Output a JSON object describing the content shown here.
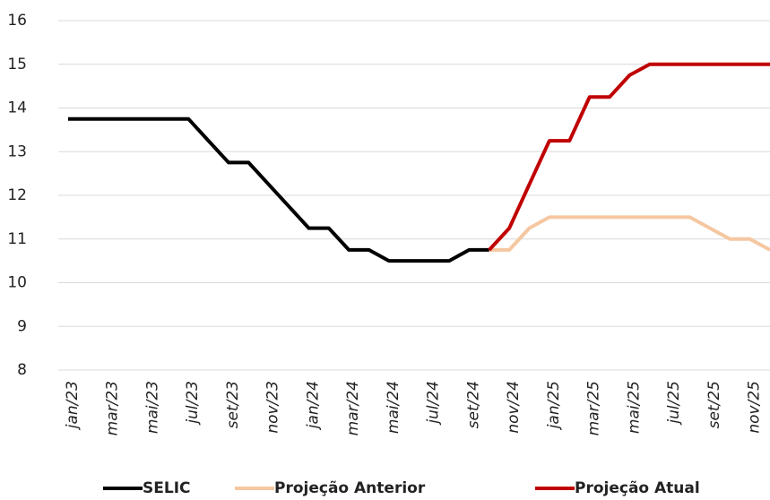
{
  "chart_data": {
    "type": "line",
    "categories": [
      "jan/23",
      null,
      "mar/23",
      null,
      "mai/23",
      null,
      "jul/23",
      null,
      "set/23",
      null,
      "nov/23",
      null,
      "jan/24",
      null,
      "mar/24",
      null,
      "mai/24",
      null,
      "jul/24",
      null,
      "set/24",
      null,
      "nov/24",
      null,
      "jan/25",
      null,
      "mar/25",
      null,
      "mai/25",
      null,
      "jul/25",
      null,
      "set/25",
      null,
      "nov/25",
      null
    ],
    "series": [
      {
        "name": "SELIC",
        "color": "#000000",
        "values": [
          13.75,
          13.75,
          13.75,
          13.75,
          13.75,
          13.75,
          13.75,
          13.25,
          12.75,
          12.75,
          12.25,
          11.75,
          11.25,
          11.25,
          10.75,
          10.75,
          10.5,
          10.5,
          10.5,
          10.5,
          10.75,
          10.75,
          null,
          null,
          null,
          null,
          null,
          null,
          null,
          null,
          null,
          null,
          null,
          null,
          null,
          null
        ]
      },
      {
        "name": "Projeção Anterior",
        "color": "#f5c7a1",
        "values": [
          null,
          null,
          null,
          null,
          null,
          null,
          null,
          null,
          null,
          null,
          null,
          null,
          null,
          null,
          null,
          null,
          null,
          null,
          null,
          null,
          null,
          10.75,
          10.75,
          11.25,
          11.5,
          11.5,
          11.5,
          11.5,
          11.5,
          11.5,
          11.5,
          11.5,
          11.25,
          11,
          11,
          10.75
        ]
      },
      {
        "name": "Projeção Atual",
        "color": "#c00000",
        "values": [
          null,
          null,
          null,
          null,
          null,
          null,
          null,
          null,
          null,
          null,
          null,
          null,
          null,
          null,
          null,
          null,
          null,
          null,
          null,
          null,
          null,
          10.75,
          11.25,
          12.25,
          13.25,
          13.25,
          14.25,
          14.25,
          14.75,
          15,
          15,
          15,
          15,
          15,
          15,
          15
        ]
      }
    ],
    "ylim": [
      8,
      16
    ],
    "yticks": [
      8,
      9,
      10,
      11,
      12,
      13,
      14,
      15,
      16
    ],
    "grid": true
  }
}
